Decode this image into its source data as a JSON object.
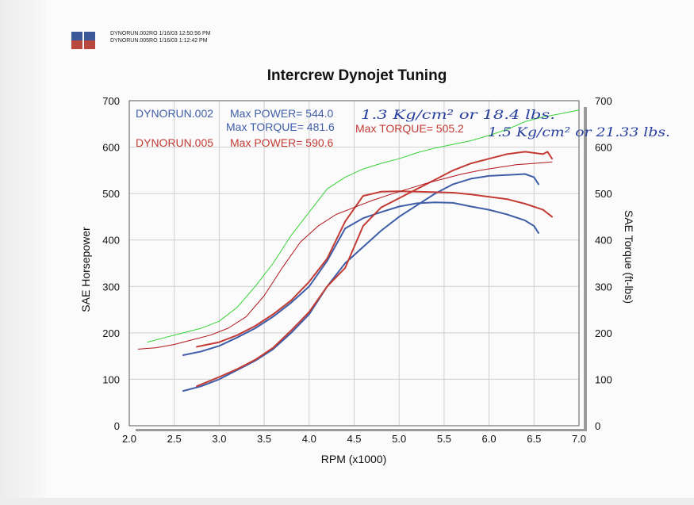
{
  "header": {
    "run1": "DYNORUN.002RO  1/16/03 12:50:56 PM",
    "run2": "DYNORUN.005RO  1/16/03 1:12:42 PM"
  },
  "colors": {
    "run002": "#3f5ea8",
    "run005": "#c23b34",
    "green": "#35d233",
    "darkred": "#b0141a",
    "ink": "#283f9e"
  },
  "chart_data": {
    "type": "line",
    "title": "Intercrew Dynojet Tuning",
    "xlabel": "RPM (x1000)",
    "ylabel": "SAE Horsepower",
    "y2label": "SAE Torque (ft-lbs)",
    "xlim": [
      2.0,
      7.0
    ],
    "ylim": [
      0,
      700
    ],
    "y2lim": [
      0,
      700
    ],
    "xticks": [
      "2.0",
      "2.5",
      "3.0",
      "3.5",
      "4.0",
      "4.5",
      "5.0",
      "5.5",
      "6.0",
      "6.5",
      "7.0"
    ],
    "yticks": [
      "0",
      "100",
      "200",
      "300",
      "400",
      "500",
      "600",
      "700"
    ],
    "grid": true,
    "annotations": {
      "run002_label": "DYNORUN.002",
      "run002_power": "Max POWER= 544.0",
      "run002_torque": "Max TORQUE= 481.6",
      "run005_label": "DYNORUN.005",
      "run005_power": "Max POWER= 590.6",
      "run005_torque": "Max TORQUE= 505.2",
      "handwritten_1": "1.3 Kg/cm² or 18.4 lbs.",
      "handwritten_2": "1.5 Kg/cm² or 21.33 lbs."
    },
    "series": [
      {
        "name": "DYNORUN.002 Max POWER= 544.0",
        "color": "#3f5ea8",
        "x": [
          2.6,
          2.8,
          3.0,
          3.2,
          3.4,
          3.6,
          3.8,
          4.0,
          4.2,
          4.4,
          4.6,
          4.8,
          5.0,
          5.2,
          5.4,
          5.6,
          5.8,
          6.0,
          6.2,
          6.4,
          6.5,
          6.55
        ],
        "y": [
          75,
          85,
          100,
          120,
          140,
          165,
          200,
          240,
          300,
          350,
          385,
          420,
          450,
          475,
          500,
          520,
          532,
          538,
          540,
          542,
          535,
          520
        ]
      },
      {
        "name": "DYNORUN.002 Max TORQUE= 481.6",
        "color": "#3f5ea8",
        "x": [
          2.6,
          2.8,
          3.0,
          3.2,
          3.4,
          3.6,
          3.8,
          4.0,
          4.2,
          4.4,
          4.6,
          4.8,
          5.0,
          5.2,
          5.4,
          5.6,
          5.8,
          6.0,
          6.2,
          6.4,
          6.5,
          6.55
        ],
        "y": [
          152,
          160,
          172,
          190,
          210,
          235,
          265,
          300,
          355,
          425,
          447,
          460,
          472,
          479,
          481,
          480,
          472,
          465,
          455,
          442,
          430,
          415
        ]
      },
      {
        "name": "DYNORUN.005 Max POWER= 590.6",
        "color": "#c23b34",
        "x": [
          2.75,
          3.0,
          3.2,
          3.4,
          3.6,
          3.8,
          4.0,
          4.2,
          4.4,
          4.6,
          4.8,
          5.0,
          5.2,
          5.4,
          5.6,
          5.8,
          6.0,
          6.2,
          6.4,
          6.6,
          6.65,
          6.7
        ],
        "y": [
          85,
          105,
          122,
          142,
          168,
          205,
          245,
          300,
          340,
          430,
          470,
          490,
          510,
          530,
          550,
          565,
          575,
          585,
          590,
          585,
          590,
          575
        ]
      },
      {
        "name": "DYNORUN.005 Max TORQUE= 505.2",
        "color": "#c23b34",
        "x": [
          2.75,
          3.0,
          3.2,
          3.4,
          3.6,
          3.8,
          4.0,
          4.2,
          4.4,
          4.6,
          4.8,
          5.0,
          5.2,
          5.4,
          5.6,
          5.8,
          6.0,
          6.2,
          6.4,
          6.6,
          6.7
        ],
        "y": [
          170,
          180,
          195,
          215,
          240,
          270,
          310,
          360,
          440,
          495,
          504,
          505,
          504,
          503,
          502,
          498,
          493,
          488,
          478,
          465,
          450
        ]
      },
      {
        "name": "",
        "color": "#35d233",
        "x": [
          2.2,
          2.4,
          2.6,
          2.8,
          3.0,
          3.2,
          3.4,
          3.6,
          3.8,
          4.0,
          4.2,
          4.4,
          4.6,
          4.8,
          5.0,
          5.2,
          5.4,
          5.6,
          5.8,
          6.0,
          6.2,
          6.4,
          6.6,
          6.8,
          7.0
        ],
        "y": [
          180,
          190,
          200,
          210,
          225,
          255,
          300,
          350,
          410,
          460,
          510,
          535,
          553,
          565,
          575,
          588,
          598,
          606,
          614,
          625,
          638,
          655,
          665,
          672,
          680
        ]
      },
      {
        "name": "",
        "color": "#b0141a",
        "x": [
          2.1,
          2.3,
          2.5,
          2.7,
          2.9,
          3.1,
          3.3,
          3.5,
          3.7,
          3.9,
          4.1,
          4.3,
          4.5,
          4.7,
          4.9,
          5.1,
          5.3,
          5.5,
          5.7,
          5.9,
          6.1,
          6.3,
          6.5,
          6.7
        ],
        "y": [
          165,
          168,
          175,
          185,
          195,
          210,
          235,
          280,
          340,
          395,
          430,
          455,
          470,
          485,
          498,
          510,
          522,
          532,
          542,
          550,
          556,
          562,
          565,
          568
        ]
      }
    ]
  }
}
